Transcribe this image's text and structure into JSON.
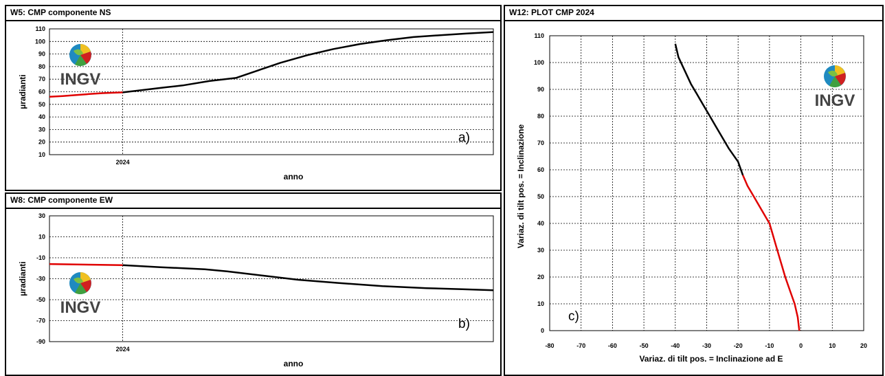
{
  "panels": [
    {
      "id": "ns",
      "title": "W5: CMP componente NS",
      "chart_data": {
        "type": "line",
        "title": "",
        "xlabel": "anno",
        "ylabel": "µradianti",
        "x_tick_labels": [
          "2024"
        ],
        "y_ticks": [
          10,
          20,
          30,
          40,
          50,
          60,
          70,
          80,
          90,
          100,
          110
        ],
        "ylim": [
          10,
          110
        ],
        "grid": true,
        "annotation": "a)",
        "series": [
          {
            "color": "#e00000",
            "x": [
              0.0,
              0.03,
              0.06,
              0.09,
              0.12,
              0.15,
              0.165
            ],
            "y": [
              56,
              56.6,
              57.4,
              58.2,
              58.9,
              59.3,
              59.5
            ]
          },
          {
            "color": "#000000",
            "x": [
              0.165,
              0.2,
              0.26,
              0.3,
              0.36,
              0.42,
              0.47,
              0.52,
              0.58,
              0.64,
              0.7,
              0.76,
              0.82,
              0.88,
              0.94,
              1.0
            ],
            "y": [
              59.5,
              61,
              63.5,
              65,
              68.5,
              71,
              77,
              83,
              89,
              94,
              98,
              101,
              103.5,
              105,
              106.3,
              107.5
            ]
          }
        ]
      }
    },
    {
      "id": "ew",
      "title": "W8: CMP componente EW",
      "chart_data": {
        "type": "line",
        "title": "",
        "xlabel": "anno",
        "ylabel": "µradianti",
        "x_tick_labels": [
          "2024"
        ],
        "y_ticks": [
          30,
          10,
          -10,
          -30,
          -50,
          -70,
          -90
        ],
        "ylim": [
          -90,
          30
        ],
        "grid": true,
        "annotation": "b)",
        "series": [
          {
            "color": "#e00000",
            "x": [
              0.0,
              0.05,
              0.1,
              0.165
            ],
            "y": [
              -16,
              -16.3,
              -16.6,
              -17
            ]
          },
          {
            "color": "#000000",
            "x": [
              0.165,
              0.25,
              0.35,
              0.4,
              0.48,
              0.56,
              0.65,
              0.75,
              0.85,
              0.93,
              1.0
            ],
            "y": [
              -17,
              -19,
              -21,
              -23,
              -27,
              -31,
              -34,
              -37,
              -39,
              -40,
              -41
            ]
          }
        ]
      }
    },
    {
      "id": "plot",
      "title": "W12: PLOT CMP 2024",
      "chart_data": {
        "type": "line",
        "title": "",
        "xlabel": "Variaz. di tilt pos. = Inclinazione ad E",
        "ylabel": "Variaz. di tilt pos. = Inclinazione",
        "x_ticks": [
          -80,
          -70,
          -60,
          -50,
          -40,
          -30,
          -20,
          -10,
          0,
          10,
          20
        ],
        "y_ticks": [
          0,
          10,
          20,
          30,
          40,
          50,
          60,
          70,
          80,
          90,
          100,
          110
        ],
        "xlim": [
          -80,
          20
        ],
        "ylim": [
          0,
          110
        ],
        "grid": true,
        "annotation": "c)",
        "series": [
          {
            "color": "#e00000",
            "x": [
              -0.5,
              -1,
              -2,
              -3.5,
              -5,
              -6,
              -7,
              -8,
              -9,
              -10,
              -11,
              -13,
              -15,
              -17,
              -18.5
            ],
            "y": [
              0,
              5,
              10,
              15,
              20,
              24,
              28,
              32,
              36,
              40,
              42,
              46,
              50,
              54,
              58
            ]
          },
          {
            "color": "#000000",
            "x": [
              -18.5,
              -20,
              -23,
              -25,
              -27,
              -29,
              -31,
              -33,
              -35,
              -37,
              -39,
              -40
            ],
            "y": [
              58,
              63,
              68,
              72,
              76,
              80,
              84,
              88,
              92,
              97,
              102,
              107
            ]
          }
        ]
      }
    }
  ],
  "logo": {
    "text": "INGV"
  }
}
